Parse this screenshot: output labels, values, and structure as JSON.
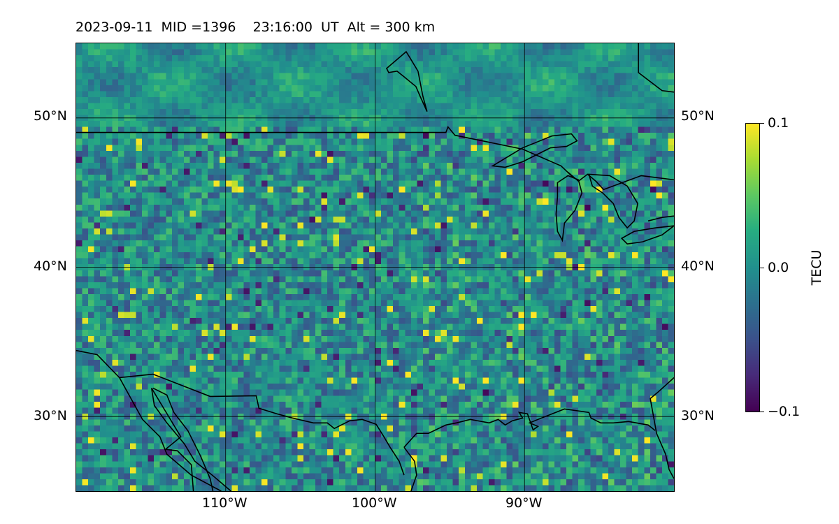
{
  "title": "2023-09-11  MID =1396    23:16:00  UT  Alt = 300 km",
  "map": {
    "lon_range": [
      -120,
      -80
    ],
    "lat_range": [
      25,
      55
    ],
    "parallels": [
      30,
      40,
      50
    ],
    "meridians": [
      -110,
      -100,
      -90
    ],
    "lat_labels": [
      "30°N",
      "40°N",
      "50°N"
    ],
    "lon_labels": [
      "110°W",
      "100°W",
      "90°W"
    ],
    "colormap": "viridis",
    "line_color": "#000000"
  },
  "colorbar": {
    "label": "TECU",
    "min": -0.1,
    "max": 0.1,
    "ticks": [
      {
        "value": 0.1,
        "label": "0.1"
      },
      {
        "value": 0.0,
        "label": "0.0"
      },
      {
        "value": -0.1,
        "label": "−0.1"
      }
    ]
  }
}
